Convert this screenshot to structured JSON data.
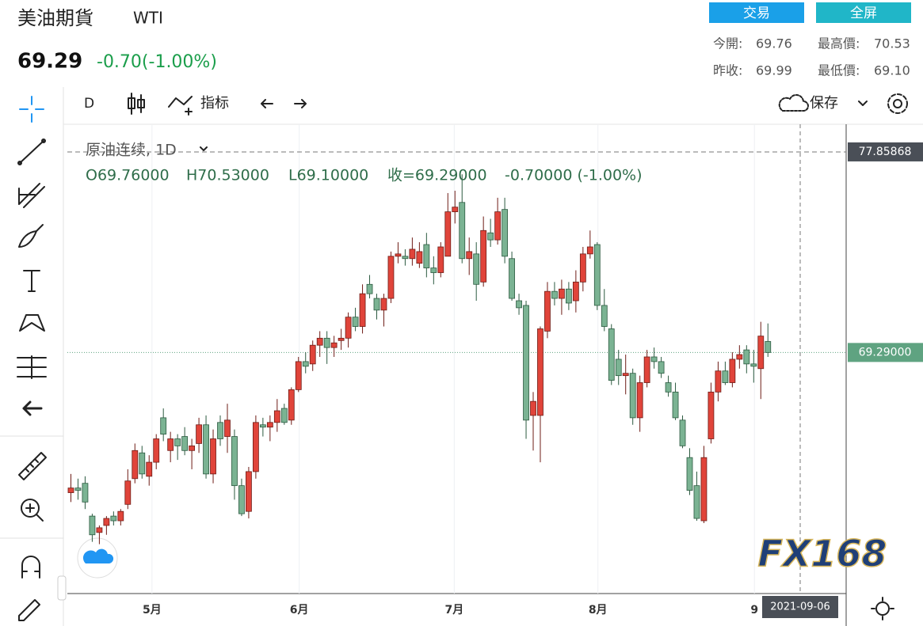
{
  "header": {
    "title": "美油期貨",
    "symbol": "WTI",
    "price": "69.29",
    "change": "-0.70(-1.00%)",
    "buttons": [
      "交易",
      "全屏"
    ],
    "stats": [
      [
        "今開:",
        "69.76"
      ],
      [
        "最高價:",
        "70.53"
      ],
      [
        "昨收:",
        "69.99"
      ],
      [
        "最低價:",
        "69.10"
      ]
    ]
  },
  "toolbar": {
    "interval": "D",
    "indicators": "指标",
    "save": "保存"
  },
  "watermark": "FX168",
  "chart_data": {
    "type": "candlestick",
    "legend_symbol": "原油连续, 1D",
    "legend_values": [
      "O69.76000",
      "H70.53000",
      "L69.10000",
      "收=69.29000",
      "-0.70000 (-1.00%)"
    ],
    "up_color": "#e0443a",
    "down_color": "#7bb393",
    "ylim": [
      58.99,
      79.04
    ],
    "xlim": [
      -0.5,
      109
    ],
    "xticks": [
      {
        "value": 11.4,
        "label": "5月"
      },
      {
        "value": 32.1,
        "label": "6月"
      },
      {
        "value": 53.9,
        "label": "7月"
      },
      {
        "value": 74.1,
        "label": "8月"
      },
      {
        "value": 96.1,
        "label": "9"
      }
    ],
    "crosshair": {
      "date": "2021-09-06",
      "price": 77.85868
    },
    "last_price": {
      "value": 69.29,
      "label": "69.29000"
    },
    "open": [
      63.3,
      63.5,
      63.7,
      62.3,
      61.6,
      61.9,
      62.3,
      62.1,
      62.8,
      63.9,
      65.0,
      64.0,
      64.6,
      66.5,
      65.1,
      65.6,
      65.7,
      65.1,
      65.4,
      66.2,
      64.1,
      66.3,
      65.7,
      65.7,
      63.6,
      62.5,
      64.2,
      66.2,
      66.1,
      66.3,
      66.9,
      66.4,
      67.7,
      68.9,
      68.8,
      69.6,
      69.9,
      69.5,
      69.8,
      69.9,
      70.8,
      70.4,
      72.2,
      71.6,
      71.1,
      71.6,
      73.4,
      73.4,
      73.3,
      73.1,
      73.9,
      72.9,
      72.7,
      73.4,
      75.3,
      75.7,
      73.3,
      73.5,
      72.3,
      74.4,
      74.1,
      75.4,
      73.3,
      71.5,
      71.3,
      66.6,
      66.6,
      70.2,
      71.9,
      71.6,
      72.0,
      71.5,
      72.3,
      73.5,
      73.9,
      71.3,
      70.3,
      69.0,
      68.3,
      68.4,
      66.5,
      68.0,
      69.1,
      68.9,
      68.0,
      67.6,
      66.4,
      64.8,
      63.6,
      62.1,
      65.6,
      67.6,
      68.5,
      68.0,
      69.0,
      69.4,
      68.8,
      68.6,
      69.76
    ],
    "high": [
      64.1,
      63.9,
      64.0,
      62.4,
      61.9,
      62.3,
      62.5,
      62.6,
      64.3,
      65.4,
      65.3,
      64.9,
      65.8,
      66.9,
      65.9,
      65.8,
      66.1,
      65.6,
      66.5,
      66.6,
      66.0,
      66.6,
      67.1,
      66.0,
      63.9,
      64.4,
      66.6,
      66.5,
      66.6,
      67.3,
      67.1,
      67.8,
      69.1,
      69.3,
      69.8,
      70.2,
      70.2,
      70.0,
      70.3,
      71.0,
      71.2,
      72.2,
      72.6,
      71.8,
      71.8,
      73.6,
      74.0,
      73.7,
      74.2,
      74.0,
      74.4,
      73.4,
      74.0,
      76.1,
      76.2,
      76.9,
      74.2,
      74.0,
      75.1,
      75.0,
      75.9,
      75.9,
      73.6,
      71.8,
      71.5,
      67.6,
      70.4,
      72.3,
      72.3,
      72.4,
      72.3,
      72.8,
      73.8,
      74.5,
      74.0,
      72.0,
      70.5,
      69.4,
      69.2,
      68.6,
      68.3,
      69.4,
      69.5,
      69.1,
      68.3,
      68.0,
      66.6,
      65.2,
      64.2,
      65.3,
      68.0,
      68.9,
      68.9,
      69.3,
      69.6,
      69.6,
      69.4,
      70.6,
      70.53
    ],
    "low": [
      62.9,
      63.0,
      62.6,
      61.2,
      61.1,
      61.5,
      61.9,
      61.9,
      62.6,
      63.7,
      63.9,
      63.6,
      64.3,
      65.5,
      64.6,
      64.7,
      64.9,
      64.3,
      65.0,
      63.9,
      63.7,
      65.3,
      65.0,
      63.0,
      62.3,
      62.2,
      63.9,
      65.7,
      65.5,
      65.9,
      66.2,
      66.2,
      67.6,
      68.4,
      68.5,
      69.1,
      68.8,
      69.1,
      69.4,
      69.5,
      70.2,
      70.1,
      71.6,
      70.7,
      70.4,
      71.4,
      73.1,
      73.0,
      73.0,
      72.9,
      72.5,
      72.2,
      72.5,
      73.4,
      74.8,
      73.1,
      72.6,
      71.5,
      72.1,
      73.8,
      73.9,
      73.1,
      71.5,
      70.9,
      65.6,
      65.1,
      64.6,
      69.9,
      71.3,
      70.9,
      71.1,
      71.0,
      71.9,
      73.3,
      71.1,
      70.2,
      67.9,
      67.9,
      67.5,
      66.2,
      65.9,
      67.8,
      68.6,
      68.2,
      67.4,
      66.4,
      65.2,
      63.2,
      62.1,
      62.0,
      65.4,
      67.2,
      67.9,
      67.8,
      68.6,
      68.4,
      68.0,
      67.3,
      69.1
    ],
    "close": [
      63.5,
      63.4,
      62.9,
      61.5,
      61.8,
      62.2,
      62.1,
      62.5,
      63.8,
      65.1,
      64.1,
      64.6,
      65.6,
      65.8,
      65.6,
      65.3,
      65.1,
      65.3,
      66.2,
      64.1,
      65.6,
      65.6,
      66.4,
      63.6,
      62.4,
      64.2,
      66.3,
      66.1,
      66.3,
      66.8,
      66.3,
      67.7,
      68.9,
      68.7,
      69.6,
      69.9,
      69.5,
      69.7,
      69.9,
      70.8,
      70.4,
      71.8,
      71.8,
      71.1,
      71.6,
      73.4,
      73.5,
      73.3,
      73.7,
      73.6,
      72.9,
      72.7,
      73.8,
      75.3,
      75.5,
      73.3,
      73.6,
      72.2,
      74.5,
      74.1,
      75.3,
      73.4,
      71.6,
      71.2,
      66.4,
      67.2,
      70.3,
      71.9,
      71.6,
      72.0,
      71.4,
      72.3,
      73.5,
      73.8,
      71.3,
      70.4,
      68.1,
      68.3,
      68.4,
      66.5,
      68.0,
      69.1,
      68.9,
      68.4,
      67.6,
      66.5,
      65.3,
      63.4,
      62.2,
      64.8,
      67.6,
      68.5,
      68.0,
      69.0,
      69.2,
      68.8,
      68.7,
      69.99,
      69.29
    ]
  }
}
